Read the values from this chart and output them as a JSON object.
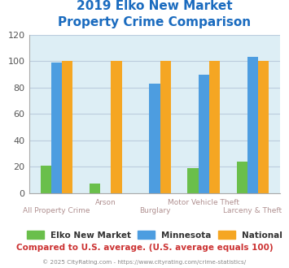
{
  "title_line1": "2019 Elko New Market",
  "title_line2": "Property Crime Comparison",
  "categories": [
    "All Property Crime",
    "Arson",
    "Burglary",
    "Motor Vehicle Theft",
    "Larceny & Theft"
  ],
  "series": {
    "Elko New Market": [
      21,
      7,
      0,
      19,
      24
    ],
    "Minnesota": [
      99,
      0,
      83,
      90,
      103
    ],
    "National": [
      100,
      100,
      100,
      100,
      100
    ]
  },
  "colors": {
    "Elko New Market": "#6abf4b",
    "Minnesota": "#4d9de0",
    "National": "#f5a623"
  },
  "ylim": [
    0,
    120
  ],
  "yticks": [
    0,
    20,
    40,
    60,
    80,
    100,
    120
  ],
  "plot_bg": "#ddeef5",
  "title_color": "#1a6bbf",
  "xlabel_color": "#b09090",
  "footer_text": "Compared to U.S. average. (U.S. average equals 100)",
  "footer_color": "#cc3333",
  "copyright_text": "© 2025 CityRating.com - https://www.cityrating.com/crime-statistics/",
  "copyright_color": "#888888",
  "grid_color": "#bbccdd",
  "bar_width": 0.22
}
